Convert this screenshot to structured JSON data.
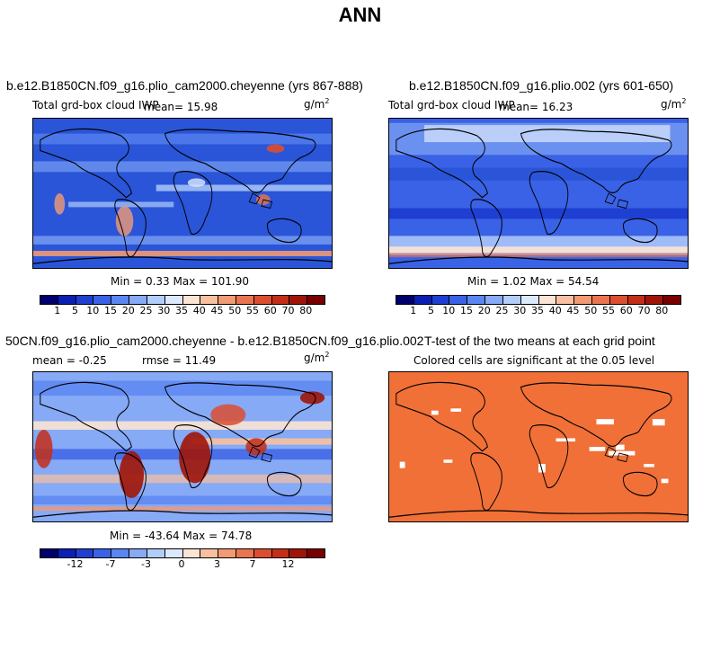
{
  "page_title": "ANN",
  "panels": [
    {
      "title": "b.e12.B1850CN.f09_g16.plio_cam2000.cheyenne (yrs 867-888)",
      "variable": "Total grd-box cloud IWP",
      "mean_text": "mean=  15.98",
      "units": "g/m",
      "units_sup": "2",
      "minmax_text": "Min =   0.33 Max = 101.90"
    },
    {
      "title": "b.e12.B1850CN.f09_g16.plio.002 (yrs 601-650)",
      "variable": "Total grd-box cloud IWP",
      "mean_text": "mean=  16.23",
      "units": "g/m",
      "units_sup": "2",
      "minmax_text": "Min =   1.02 Max =  54.54"
    },
    {
      "title": "50CN.f09_g16.plio_cam2000.cheyenne - b.e12.B1850CN.f09_g16.plio.002",
      "mean_text": "mean =  -0.25",
      "rmse_text": "rmse =  11.49",
      "units": "g/m",
      "units_sup": "2",
      "minmax_text": "Min = -43.64 Max =  74.78"
    },
    {
      "title": "T-test of the two means at each grid point",
      "subtitle": "Colored cells are significant at the 0.05 level"
    }
  ],
  "colorbar_abs": {
    "colors": [
      "#00006e",
      "#0a1fb4",
      "#1e3fd2",
      "#3a62e6",
      "#5a86f2",
      "#86aaf6",
      "#b2cdfa",
      "#dce8fc",
      "#fce4d4",
      "#f8c0a0",
      "#f29a74",
      "#ea7450",
      "#dc4e30",
      "#c42e18",
      "#a01408",
      "#780000"
    ],
    "labels": [
      "1",
      "5",
      "10",
      "15",
      "20",
      "25",
      "30",
      "35",
      "40",
      "45",
      "50",
      "55",
      "60",
      "70",
      "80"
    ]
  },
  "colorbar_diff": {
    "colors": [
      "#00006e",
      "#0a1fb4",
      "#1e3fd2",
      "#3a62e6",
      "#5a86f2",
      "#86aaf6",
      "#b2cdfa",
      "#dce8fc",
      "#fce4d4",
      "#f8c0a0",
      "#f29a74",
      "#ea7450",
      "#dc4e30",
      "#c42e18",
      "#a01408",
      "#780000"
    ],
    "labels": [
      "-12",
      "-7",
      "-3",
      "0",
      "3",
      "7",
      "12"
    ]
  },
  "ttest_color": "#f07038"
}
